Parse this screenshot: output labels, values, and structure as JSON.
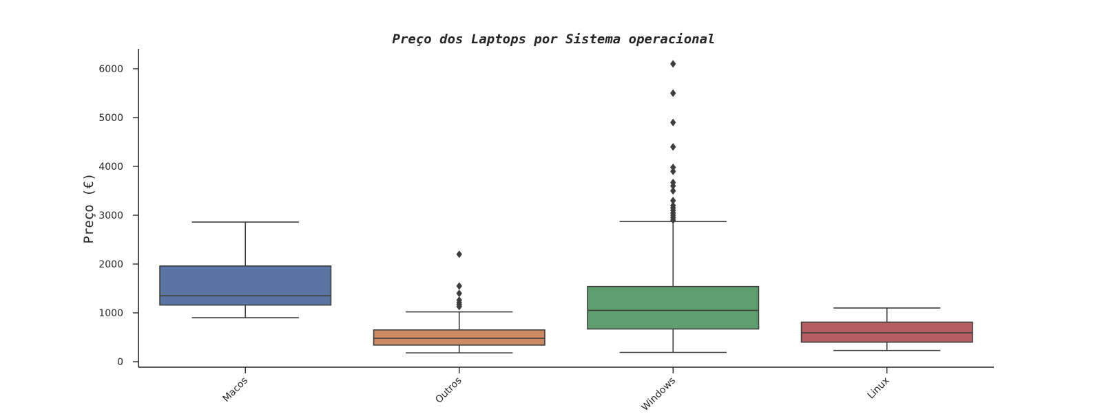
{
  "chart_data": {
    "type": "box",
    "title": "Preço dos Laptops por Sistema operacional",
    "xlabel": "",
    "ylabel": "Preço (€)",
    "ylim": [
      -120,
      6400
    ],
    "yticks": [
      0,
      1000,
      2000,
      3000,
      4000,
      5000,
      6000
    ],
    "grid": false,
    "categories": [
      "Macos",
      "Outros",
      "Windows",
      "Linux"
    ],
    "series": [
      {
        "category": "Macos",
        "color": "#5875a4",
        "whisker_low": 900,
        "q1": 1160,
        "median": 1350,
        "q3": 1960,
        "whisker_high": 2860,
        "outliers": []
      },
      {
        "category": "Outros",
        "color": "#cc8963",
        "whisker_low": 180,
        "q1": 340,
        "median": 480,
        "q3": 650,
        "whisker_high": 1020,
        "outliers": [
          1130,
          1170,
          1210,
          1260,
          1400,
          1550,
          2200
        ]
      },
      {
        "category": "Windows",
        "color": "#5f9e6e",
        "whisker_low": 190,
        "q1": 670,
        "median": 1050,
        "q3": 1540,
        "whisker_high": 2870,
        "outliers": [
          2900,
          2950,
          3000,
          3050,
          3100,
          3150,
          3200,
          3300,
          3500,
          3600,
          3670,
          3900,
          3980,
          4400,
          4900,
          5500,
          6100
        ]
      },
      {
        "category": "Linux",
        "color": "#b55d60",
        "whisker_low": 230,
        "q1": 400,
        "median": 590,
        "q3": 810,
        "whisker_high": 1100,
        "outliers": []
      }
    ]
  }
}
